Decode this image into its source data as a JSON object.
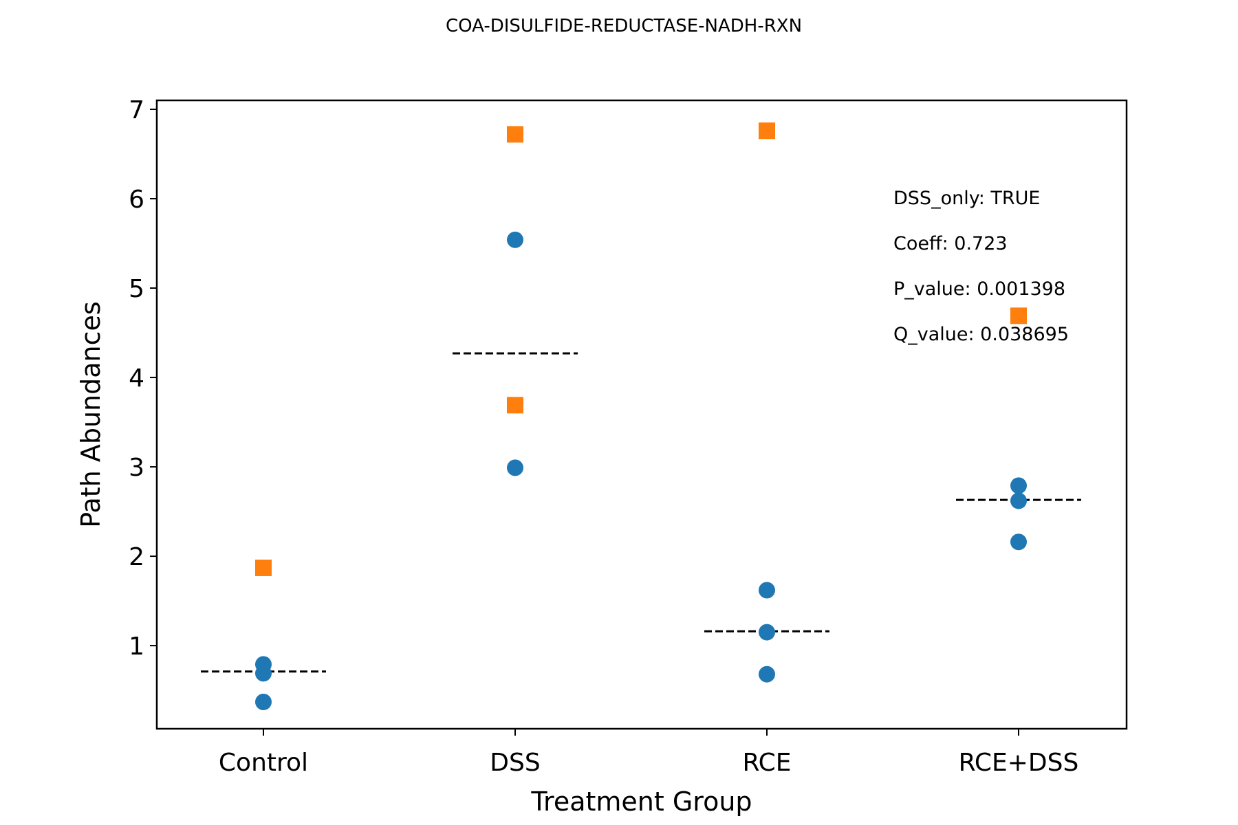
{
  "chart_data": {
    "type": "scatter",
    "title": "COA-DISULFIDE-REDUCTASE-NADH-RXN",
    "xlabel": "Treatment Group",
    "ylabel": "Path Abundances",
    "categories": [
      "Control",
      "DSS",
      "RCE",
      "RCE+DSS"
    ],
    "ylim": [
      0.07,
      7.1
    ],
    "yticks": [
      1,
      2,
      3,
      4,
      5,
      6,
      7
    ],
    "grid": false,
    "series": [
      {
        "marker": "circle",
        "color": "#1f77b4",
        "points": [
          {
            "category": "Control",
            "y": 0.79
          },
          {
            "category": "Control",
            "y": 0.69
          },
          {
            "category": "Control",
            "y": 0.37
          },
          {
            "category": "DSS",
            "y": 5.54
          },
          {
            "category": "DSS",
            "y": 2.99
          },
          {
            "category": "RCE",
            "y": 1.62
          },
          {
            "category": "RCE",
            "y": 1.15
          },
          {
            "category": "RCE",
            "y": 0.68
          },
          {
            "category": "RCE+DSS",
            "y": 2.79
          },
          {
            "category": "RCE+DSS",
            "y": 2.62
          },
          {
            "category": "RCE+DSS",
            "y": 2.16
          }
        ]
      },
      {
        "marker": "square",
        "color": "#ff7f0e",
        "points": [
          {
            "category": "Control",
            "y": 1.87
          },
          {
            "category": "DSS",
            "y": 6.72
          },
          {
            "category": "DSS",
            "y": 3.69
          },
          {
            "category": "RCE",
            "y": 6.76
          },
          {
            "category": "RCE+DSS",
            "y": 4.69
          }
        ]
      }
    ],
    "means": [
      {
        "category": "Control",
        "y": 0.71
      },
      {
        "category": "DSS",
        "y": 4.27
      },
      {
        "category": "RCE",
        "y": 1.16
      },
      {
        "category": "RCE+DSS",
        "y": 2.63
      }
    ],
    "annotations": [
      "DSS_only: TRUE",
      "Coeff: 0.723",
      "P_value: 0.001398",
      "Q_value: 0.038695"
    ]
  }
}
